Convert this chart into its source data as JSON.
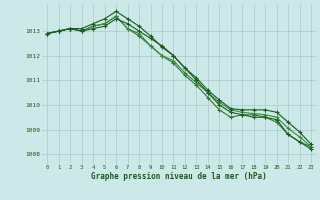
{
  "background_color": "#cce8e8",
  "grid_color": "#aacccc",
  "line_color_1": "#1a5c1a",
  "line_color_2": "#2d7a2d",
  "line_color_3": "#3a8a3a",
  "line_color_4": "#1a5c1a",
  "x_values": [
    0,
    1,
    2,
    3,
    4,
    5,
    6,
    7,
    8,
    9,
    10,
    11,
    12,
    13,
    14,
    15,
    16,
    17,
    18,
    19,
    20,
    21,
    22,
    23
  ],
  "series1": [
    1012.9,
    1013.0,
    1013.1,
    1013.0,
    1013.1,
    1013.2,
    1013.5,
    1013.3,
    1013.0,
    1012.7,
    1012.4,
    1012.0,
    1011.5,
    1011.0,
    1010.5,
    1010.0,
    1009.7,
    1009.6,
    1009.5,
    1009.5,
    1009.4,
    1008.8,
    1008.5,
    1008.2
  ],
  "series2": [
    1012.9,
    1013.0,
    1013.1,
    1013.0,
    1013.2,
    1013.3,
    1013.6,
    1013.1,
    1012.8,
    1012.4,
    1012.0,
    1011.7,
    1011.2,
    1010.8,
    1010.3,
    1009.8,
    1009.5,
    1009.6,
    1009.6,
    1009.5,
    1009.3,
    1008.8,
    1008.5,
    1008.3
  ],
  "series3": [
    1012.9,
    1013.0,
    1013.1,
    1013.0,
    1013.2,
    1013.3,
    1013.6,
    1013.1,
    1012.9,
    1012.4,
    1012.0,
    1011.8,
    1011.3,
    1010.9,
    1010.5,
    1010.1,
    1009.8,
    1009.7,
    1009.65,
    1009.6,
    1009.5,
    1009.05,
    1008.7,
    1008.3
  ],
  "series4": [
    1012.9,
    1013.0,
    1013.1,
    1013.1,
    1013.3,
    1013.5,
    1013.8,
    1013.5,
    1013.2,
    1012.8,
    1012.35,
    1012.0,
    1011.5,
    1011.1,
    1010.6,
    1010.2,
    1009.85,
    1009.8,
    1009.8,
    1009.8,
    1009.7,
    1009.3,
    1008.9,
    1008.4
  ],
  "ylim_min": 1007.6,
  "ylim_max": 1014.1,
  "yticks": [
    1008,
    1009,
    1010,
    1011,
    1012,
    1013
  ],
  "xlabel": "Graphe pression niveau de la mer (hPa)"
}
